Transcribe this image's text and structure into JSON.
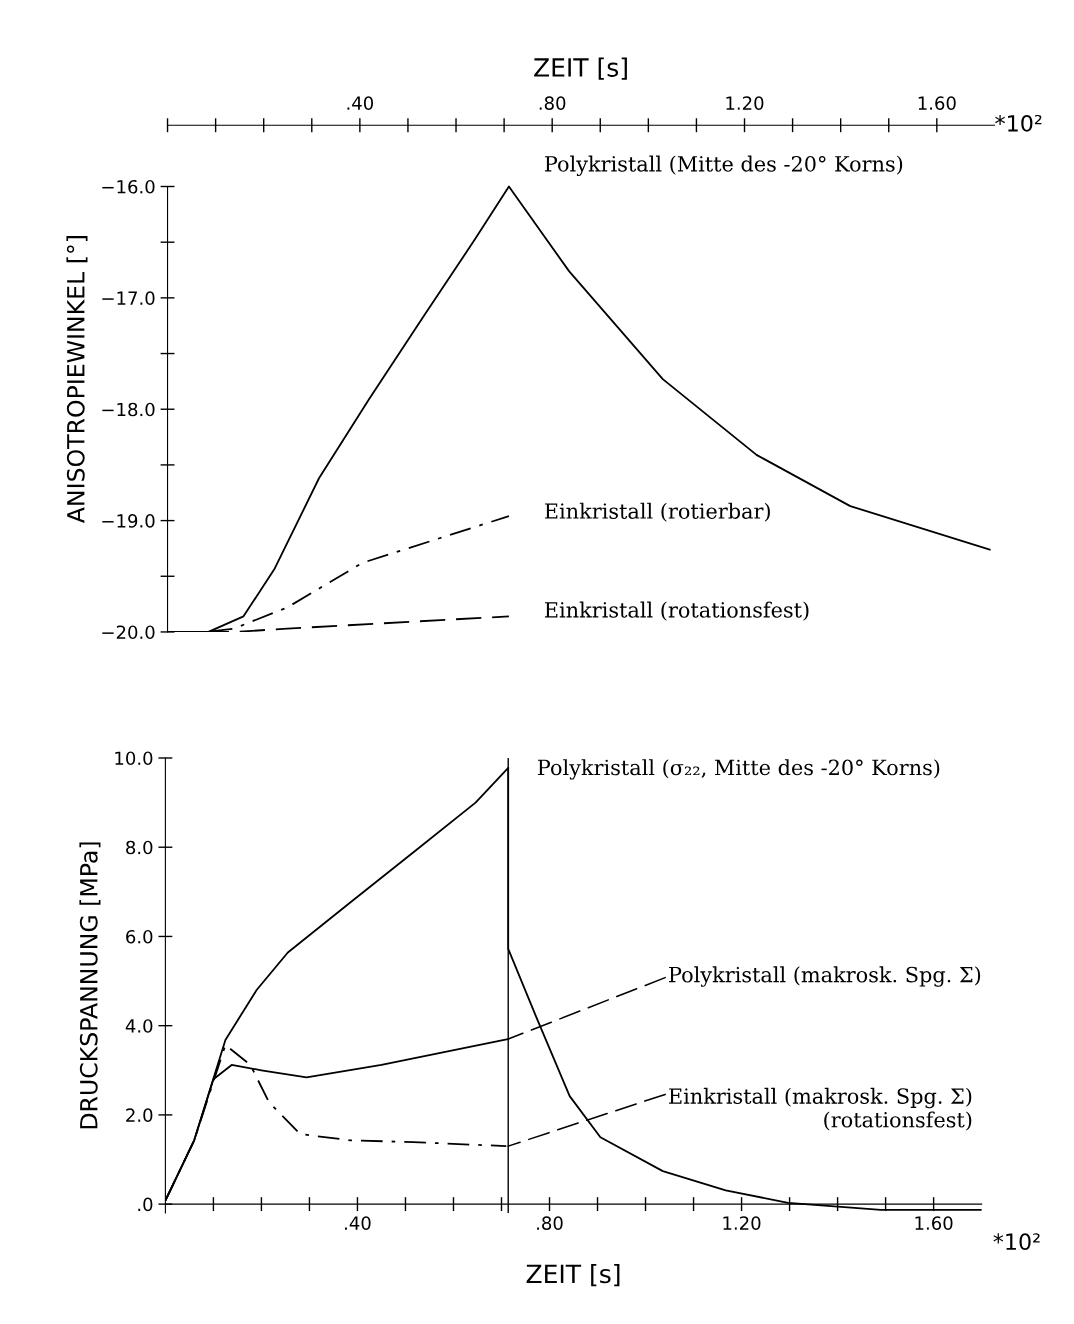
{
  "chart_data": [
    {
      "type": "line",
      "ylabel": "ANISOTROPIEWINKEL [°]",
      "xlabel": "ZEIT [s]",
      "xlim": [
        0,
        1.72
      ],
      "xticks": [
        {
          "value": 0,
          "label": null
        },
        {
          "value": 0.1,
          "label": null
        },
        {
          "value": 0.2,
          "label": null
        },
        {
          "value": 0.3,
          "label": null
        },
        {
          "value": 0.4,
          "label": ".40"
        },
        {
          "value": 0.5,
          "label": null
        },
        {
          "value": 0.6,
          "label": null
        },
        {
          "value": 0.7,
          "label": null
        },
        {
          "value": 0.8,
          "label": ".80"
        },
        {
          "value": 0.9,
          "label": null
        },
        {
          "value": 1.0,
          "label": null
        },
        {
          "value": 1.1,
          "label": null
        },
        {
          "value": 1.2,
          "label": "1.20"
        },
        {
          "value": 1.3,
          "label": null
        },
        {
          "value": 1.4,
          "label": null
        },
        {
          "value": 1.5,
          "label": null
        },
        {
          "value": 1.6,
          "label": "1.60"
        }
      ],
      "ylim": [
        -20.0,
        -15.45
      ],
      "yticks": [
        {
          "value": -16.0,
          "label": "−16.0"
        },
        {
          "value": -16.5,
          "label": null
        },
        {
          "value": -17.0,
          "label": "−17.0"
        },
        {
          "value": -17.5,
          "label": null
        },
        {
          "value": -18.0,
          "label": "−18.0"
        },
        {
          "value": -18.5,
          "label": null
        },
        {
          "value": -19.0,
          "label": "−19.0"
        },
        {
          "value": -19.5,
          "label": null
        },
        {
          "value": -20.0,
          "label": "−20.0"
        }
      ],
      "grid": false,
      "legend": false,
      "series": [
        {
          "color": "#000000",
          "line_style": "solid",
          "x": [
            0,
            0.085,
            0.158,
            0.223,
            0.315,
            0.419,
            0.535,
            0.64,
            0.71,
            0.835,
            1.03,
            1.225,
            1.42,
            1.71
          ],
          "values": [
            -20.0,
            -20.0,
            -19.86,
            -19.43,
            -18.62,
            -17.91,
            -17.15,
            -16.47,
            -16.0,
            -16.76,
            -17.73,
            -18.41,
            -18.87,
            -19.26
          ]
        },
        {
          "color": "#000000",
          "line_style": "dashdot",
          "x": [
            0,
            0.08,
            0.138,
            0.249,
            0.405,
            0.71
          ],
          "values": [
            -20.0,
            -20.0,
            -19.97,
            -19.78,
            -19.38,
            -18.96
          ]
        },
        {
          "color": "#000000",
          "line_style": "dashed",
          "x": [
            0,
            0.14,
            0.249,
            0.71
          ],
          "values": [
            -20.0,
            -20.0,
            -19.97,
            -19.86
          ]
        }
      ],
      "annotations": [
        "Polykristall (Mitte des -20° Korns)",
        "Einkristall (rotierbar)",
        "Einkristall (rotationsfest)",
        "*10²"
      ]
    },
    {
      "type": "line",
      "xlabel": "ZEIT [s]",
      "ylabel": "DRUCKSPANNUNG [MPa]",
      "xlim": [
        0,
        1.7
      ],
      "xticks": [
        {
          "value": 0.1,
          "label": null
        },
        {
          "value": 0.2,
          "label": null
        },
        {
          "value": 0.3,
          "label": null
        },
        {
          "value": 0.4,
          "label": ".40"
        },
        {
          "value": 0.5,
          "label": null
        },
        {
          "value": 0.6,
          "label": null
        },
        {
          "value": 0.7,
          "label": null
        },
        {
          "value": 0.8,
          "label": ".80"
        },
        {
          "value": 0.9,
          "label": null
        },
        {
          "value": 1.0,
          "label": null
        },
        {
          "value": 1.1,
          "label": null
        },
        {
          "value": 1.2,
          "label": "1.20"
        },
        {
          "value": 1.3,
          "label": null
        },
        {
          "value": 1.4,
          "label": null
        },
        {
          "value": 1.5,
          "label": null
        },
        {
          "value": 1.6,
          "label": "1.60"
        }
      ],
      "ylim": [
        -0.2,
        10.0
      ],
      "yticks": [
        {
          "value": 0,
          "label": ".0"
        },
        {
          "value": 2,
          "label": "2.0"
        },
        {
          "value": 4,
          "label": "4.0"
        },
        {
          "value": 6,
          "label": "6.0"
        },
        {
          "value": 8,
          "label": "8.0"
        },
        {
          "value": 10,
          "label": "10.0"
        }
      ],
      "grid": false,
      "legend": false,
      "ref_lines": [
        {
          "axis": "x",
          "value": 0.714,
          "color": "#000000",
          "line_style": "solid"
        }
      ],
      "series": [
        {
          "color": "#000000",
          "line_style": "solid",
          "x": [
            0,
            0.06,
            0.125,
            0.19,
            0.255,
            0.385,
            0.516,
            0.646,
            0.714,
            0.714,
            0.776,
            0.842,
            0.906,
            1.036,
            1.167,
            1.297,
            1.49,
            1.7
          ],
          "values": [
            0.08,
            1.43,
            3.68,
            4.8,
            5.64,
            6.76,
            7.88,
            9.0,
            9.78,
            5.72,
            4.1,
            2.42,
            1.5,
            0.74,
            0.31,
            0.03,
            -0.13,
            -0.13
          ]
        },
        {
          "color": "#000000",
          "line_style": "solid",
          "x": [
            0,
            0.06,
            0.1,
            0.138,
            0.2,
            0.294,
            0.45,
            0.714
          ],
          "values": [
            0.08,
            1.43,
            2.8,
            3.12,
            3.0,
            2.84,
            3.12,
            3.7
          ]
        },
        {
          "color": "#000000",
          "line_style": "dashdot",
          "x": [
            0,
            0.06,
            0.125,
            0.177,
            0.216,
            0.281,
            0.385,
            0.516,
            0.71
          ],
          "values": [
            0.08,
            1.43,
            3.57,
            3.12,
            2.28,
            1.57,
            1.43,
            1.39,
            1.3
          ]
        }
      ],
      "annotations": [
        "Polykristall (σ₂₂, Mitte des -20° Korns)",
        {
          "text": "Polykristall (makrosk. Spg. Σ)",
          "x": 0.714,
          "y": 3.7
        },
        {
          "text": "Einkristall (makrosk. Spg. Σ)\n(rotationsfest)",
          "x": 0.714,
          "y": 1.3
        },
        "*10²"
      ]
    }
  ]
}
